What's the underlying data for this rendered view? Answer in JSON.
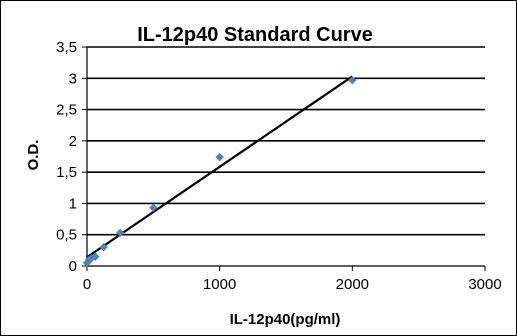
{
  "chart_data": {
    "type": "scatter",
    "title": "IL-12p40 Standard Curve",
    "xlabel": "IL-12p40(pg/ml)",
    "ylabel": "O.D.",
    "xlim": [
      0,
      3000
    ],
    "ylim": [
      0,
      3.5
    ],
    "x_ticks": [
      "0",
      "1000",
      "2000",
      "3000"
    ],
    "y_ticks": [
      "0",
      "0,5",
      "1",
      "1,5",
      "2",
      "2,5",
      "3",
      "3,5"
    ],
    "grid": "horizontal major gridlines",
    "marker_color": "#4F81BD",
    "line_color": "#000000",
    "series": [
      {
        "points": [
          {
            "x": 0,
            "y": 0.05
          },
          {
            "x": 15.6,
            "y": 0.1
          },
          {
            "x": 31.25,
            "y": 0.12
          },
          {
            "x": 62.5,
            "y": 0.15
          },
          {
            "x": 125,
            "y": 0.3
          },
          {
            "x": 250,
            "y": 0.53
          },
          {
            "x": 500,
            "y": 0.93
          },
          {
            "x": 1000,
            "y": 1.74
          },
          {
            "x": 2000,
            "y": 2.97
          }
        ]
      }
    ],
    "trendline": {
      "x_start": 0,
      "y_start": 0.14,
      "x_end": 2000,
      "y_end": 3.03
    }
  }
}
